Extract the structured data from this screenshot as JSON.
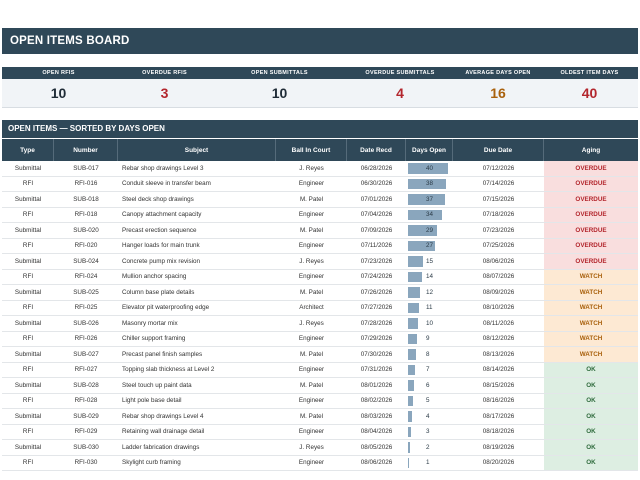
{
  "title": "OPEN ITEMS BOARD",
  "kpis": [
    {
      "label": "OPEN RFIS",
      "value": "10",
      "color": "#1f2b36"
    },
    {
      "label": "OVERDUE RFIS",
      "value": "3",
      "color": "#b3262d"
    },
    {
      "label": "OPEN SUBMITTALS",
      "value": "10",
      "color": "#1f2b36"
    },
    {
      "label": "OVERDUE SUBMITTALS",
      "value": "4",
      "color": "#b3262d"
    },
    {
      "label": "AVERAGE DAYS OPEN",
      "value": "16",
      "color": "#a9610d"
    },
    {
      "label": "OLDEST ITEM DAYS",
      "value": "40",
      "color": "#b3262d"
    }
  ],
  "section_title": "OPEN ITEMS — SORTED BY DAYS OPEN",
  "columns": [
    "Type",
    "Number",
    "Subject",
    "Ball In Court",
    "Date Recd",
    "Days Open",
    "Due Date",
    "Aging"
  ],
  "max_days": 40,
  "rows": [
    {
      "type": "Submittal",
      "number": "SUB-017",
      "subject": "Rebar shop drawings Level 3",
      "ball": "J. Reyes",
      "recd": "06/28/2026",
      "days": 40,
      "due": "07/12/2026",
      "aging": "OVERDUE"
    },
    {
      "type": "RFI",
      "number": "RFI-016",
      "subject": "Conduit sleeve in transfer beam",
      "ball": "Engineer",
      "recd": "06/30/2026",
      "days": 38,
      "due": "07/14/2026",
      "aging": "OVERDUE"
    },
    {
      "type": "Submittal",
      "number": "SUB-018",
      "subject": "Steel deck shop drawings",
      "ball": "M. Patel",
      "recd": "07/01/2026",
      "days": 37,
      "due": "07/15/2026",
      "aging": "OVERDUE"
    },
    {
      "type": "RFI",
      "number": "RFI-018",
      "subject": "Canopy attachment capacity",
      "ball": "Engineer",
      "recd": "07/04/2026",
      "days": 34,
      "due": "07/18/2026",
      "aging": "OVERDUE"
    },
    {
      "type": "Submittal",
      "number": "SUB-020",
      "subject": "Precast erection sequence",
      "ball": "M. Patel",
      "recd": "07/09/2026",
      "days": 29,
      "due": "07/23/2026",
      "aging": "OVERDUE"
    },
    {
      "type": "RFI",
      "number": "RFI-020",
      "subject": "Hanger loads for main trunk",
      "ball": "Engineer",
      "recd": "07/11/2026",
      "days": 27,
      "due": "07/25/2026",
      "aging": "OVERDUE"
    },
    {
      "type": "Submittal",
      "number": "SUB-024",
      "subject": "Concrete pump mix revision",
      "ball": "J. Reyes",
      "recd": "07/23/2026",
      "days": 15,
      "due": "08/06/2026",
      "aging": "OVERDUE"
    },
    {
      "type": "RFI",
      "number": "RFI-024",
      "subject": "Mullion anchor spacing",
      "ball": "Engineer",
      "recd": "07/24/2026",
      "days": 14,
      "due": "08/07/2026",
      "aging": "WATCH"
    },
    {
      "type": "Submittal",
      "number": "SUB-025",
      "subject": "Column base plate details",
      "ball": "M. Patel",
      "recd": "07/26/2026",
      "days": 12,
      "due": "08/09/2026",
      "aging": "WATCH"
    },
    {
      "type": "RFI",
      "number": "RFI-025",
      "subject": "Elevator pit waterproofing edge",
      "ball": "Architect",
      "recd": "07/27/2026",
      "days": 11,
      "due": "08/10/2026",
      "aging": "WATCH"
    },
    {
      "type": "Submittal",
      "number": "SUB-026",
      "subject": "Masonry mortar mix",
      "ball": "J. Reyes",
      "recd": "07/28/2026",
      "days": 10,
      "due": "08/11/2026",
      "aging": "WATCH"
    },
    {
      "type": "RFI",
      "number": "RFI-026",
      "subject": "Chiller support framing",
      "ball": "Engineer",
      "recd": "07/29/2026",
      "days": 9,
      "due": "08/12/2026",
      "aging": "WATCH"
    },
    {
      "type": "Submittal",
      "number": "SUB-027",
      "subject": "Precast panel finish samples",
      "ball": "M. Patel",
      "recd": "07/30/2026",
      "days": 8,
      "due": "08/13/2026",
      "aging": "WATCH"
    },
    {
      "type": "RFI",
      "number": "RFI-027",
      "subject": "Topping slab thickness at Level 2",
      "ball": "Engineer",
      "recd": "07/31/2026",
      "days": 7,
      "due": "08/14/2026",
      "aging": "OK"
    },
    {
      "type": "Submittal",
      "number": "SUB-028",
      "subject": "Steel touch up paint data",
      "ball": "M. Patel",
      "recd": "08/01/2026",
      "days": 6,
      "due": "08/15/2026",
      "aging": "OK"
    },
    {
      "type": "RFI",
      "number": "RFI-028",
      "subject": "Light pole base detail",
      "ball": "Engineer",
      "recd": "08/02/2026",
      "days": 5,
      "due": "08/16/2026",
      "aging": "OK"
    },
    {
      "type": "Submittal",
      "number": "SUB-029",
      "subject": "Rebar shop drawings Level 4",
      "ball": "M. Patel",
      "recd": "08/03/2026",
      "days": 4,
      "due": "08/17/2026",
      "aging": "OK"
    },
    {
      "type": "RFI",
      "number": "RFI-029",
      "subject": "Retaining wall drainage detail",
      "ball": "Engineer",
      "recd": "08/04/2026",
      "days": 3,
      "due": "08/18/2026",
      "aging": "OK"
    },
    {
      "type": "Submittal",
      "number": "SUB-030",
      "subject": "Ladder fabrication drawings",
      "ball": "J. Reyes",
      "recd": "08/05/2026",
      "days": 2,
      "due": "08/19/2026",
      "aging": "OK"
    },
    {
      "type": "RFI",
      "number": "RFI-030",
      "subject": "Skylight curb framing",
      "ball": "Engineer",
      "recd": "08/06/2026",
      "days": 1,
      "due": "08/20/2026",
      "aging": "OK"
    }
  ]
}
